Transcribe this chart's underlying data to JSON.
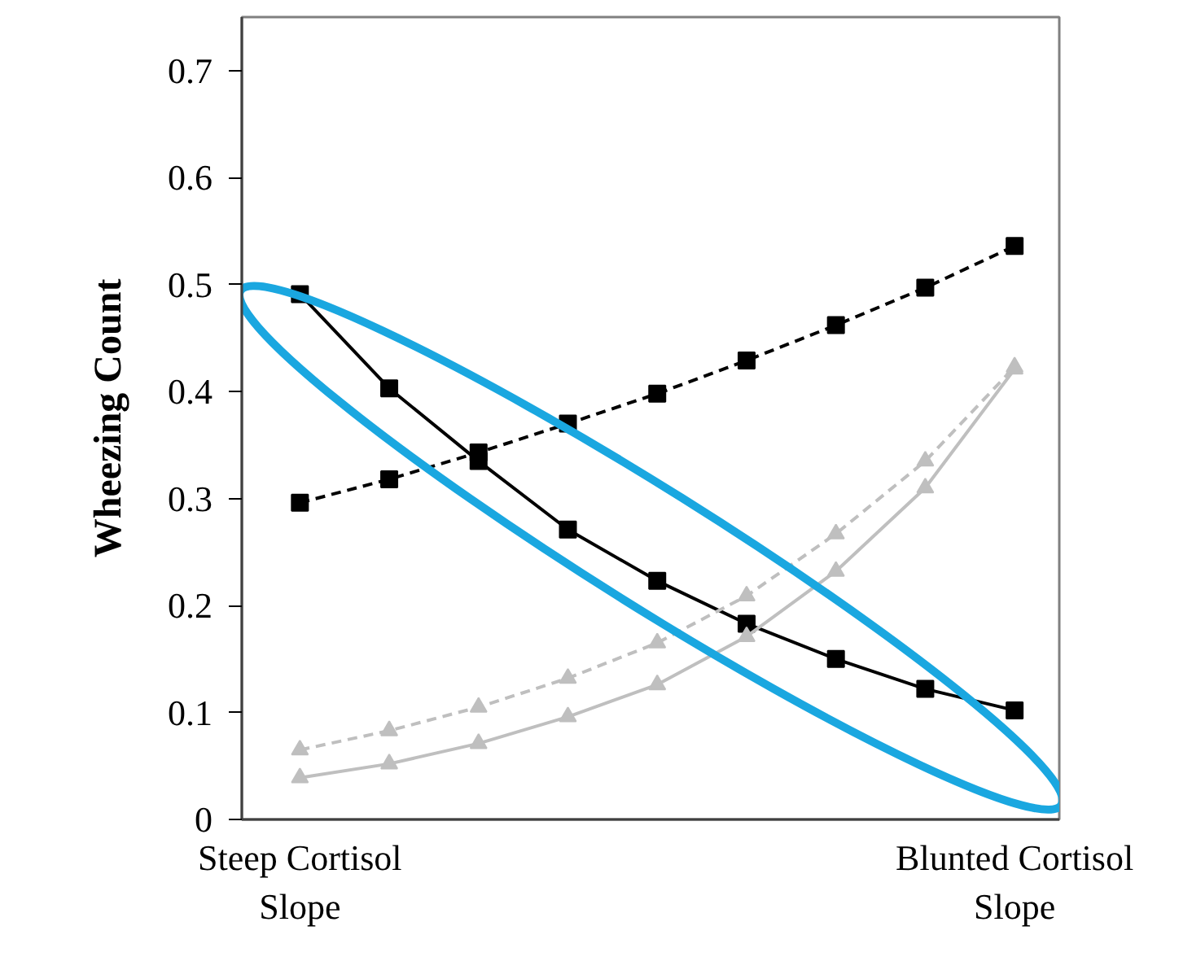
{
  "chart_data": {
    "type": "line",
    "ylabel": "Wheezing Count",
    "categories": [
      "Steep Cortisol\nSlope",
      null,
      null,
      null,
      null,
      null,
      null,
      null,
      "Blunted Cortisol\nSlope"
    ],
    "series": [
      {
        "color": "#000000",
        "marker": "square",
        "line_style": "solid",
        "values": [
          0.491,
          0.403,
          0.335,
          0.271,
          0.223,
          0.183,
          0.15,
          0.122,
          0.102
        ]
      },
      {
        "color": "#000000",
        "marker": "square",
        "line_style": "dashed",
        "values": [
          0.296,
          0.318,
          0.343,
          0.37,
          0.398,
          0.429,
          0.462,
          0.497,
          0.536
        ]
      },
      {
        "color": "#bfbfbf",
        "marker": "triangle",
        "line_style": "dashed",
        "values": [
          0.065,
          0.083,
          0.105,
          0.132,
          0.165,
          0.209,
          0.267,
          0.335,
          0.423
        ]
      },
      {
        "color": "#bfbfbf",
        "marker": "triangle",
        "line_style": "solid",
        "values": [
          0.039,
          0.052,
          0.071,
          0.096,
          0.126,
          0.171,
          0.232,
          0.31,
          0.421
        ]
      }
    ],
    "ylim": [
      0,
      0.75
    ],
    "yticks": [
      0,
      0.1,
      0.2,
      0.3,
      0.4,
      0.5,
      0.6,
      0.7
    ],
    "grid": false
  }
}
